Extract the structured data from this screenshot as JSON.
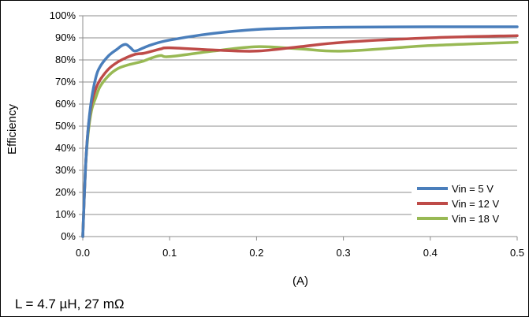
{
  "chart_data": {
    "type": "line",
    "title": "",
    "xlabel": "(A)",
    "ylabel": "Efficiency",
    "xlim": [
      0,
      0.5
    ],
    "ylim": [
      0,
      100
    ],
    "xticks": [
      0.0,
      0.1,
      0.2,
      0.3,
      0.4,
      0.5
    ],
    "xtick_labels": [
      "0.0",
      "0.1",
      "0.2",
      "0.3",
      "0.4",
      "0.5"
    ],
    "yticks": [
      0,
      10,
      20,
      30,
      40,
      50,
      60,
      70,
      80,
      90,
      100
    ],
    "ytick_labels": [
      "0%",
      "10%",
      "20%",
      "30%",
      "40%",
      "50%",
      "60%",
      "70%",
      "80%",
      "90%",
      "100%"
    ],
    "grid": "horizontal",
    "legend_position": "bottom-right",
    "series": [
      {
        "name": "Vin = 5 V",
        "color": "#4a7ebb",
        "x": [
          0.0,
          0.003,
          0.006,
          0.01,
          0.015,
          0.02,
          0.03,
          0.04,
          0.045,
          0.05,
          0.055,
          0.06,
          0.07,
          0.08,
          0.1,
          0.15,
          0.2,
          0.25,
          0.3,
          0.4,
          0.5
        ],
        "y": [
          0,
          30,
          48,
          62,
          72,
          77,
          82,
          85,
          86.5,
          87,
          85.5,
          84,
          85.5,
          87,
          89,
          92,
          93.8,
          94.5,
          94.8,
          95,
          95
        ]
      },
      {
        "name": "Vin = 12 V",
        "color": "#be4b48",
        "x": [
          0.0,
          0.003,
          0.006,
          0.01,
          0.015,
          0.02,
          0.03,
          0.04,
          0.05,
          0.06,
          0.07,
          0.08,
          0.09,
          0.1,
          0.15,
          0.2,
          0.25,
          0.3,
          0.4,
          0.5
        ],
        "y": [
          0,
          30,
          48,
          60,
          67,
          71,
          76,
          79,
          81,
          82.5,
          83,
          84,
          85,
          85.5,
          84.5,
          84,
          86,
          88,
          90,
          91
        ]
      },
      {
        "name": "Vin = 18 V",
        "color": "#98b954",
        "x": [
          0.0,
          0.003,
          0.006,
          0.01,
          0.015,
          0.02,
          0.03,
          0.04,
          0.05,
          0.06,
          0.07,
          0.08,
          0.09,
          0.1,
          0.15,
          0.2,
          0.25,
          0.3,
          0.4,
          0.5
        ],
        "y": [
          0,
          30,
          46,
          57,
          63,
          68,
          73,
          76,
          77.5,
          78.5,
          79.5,
          81,
          82,
          81.5,
          84,
          86,
          85,
          84,
          86.5,
          88
        ]
      }
    ]
  },
  "annotation": {
    "note": "L = 4.7 µH, 27 mΩ"
  }
}
